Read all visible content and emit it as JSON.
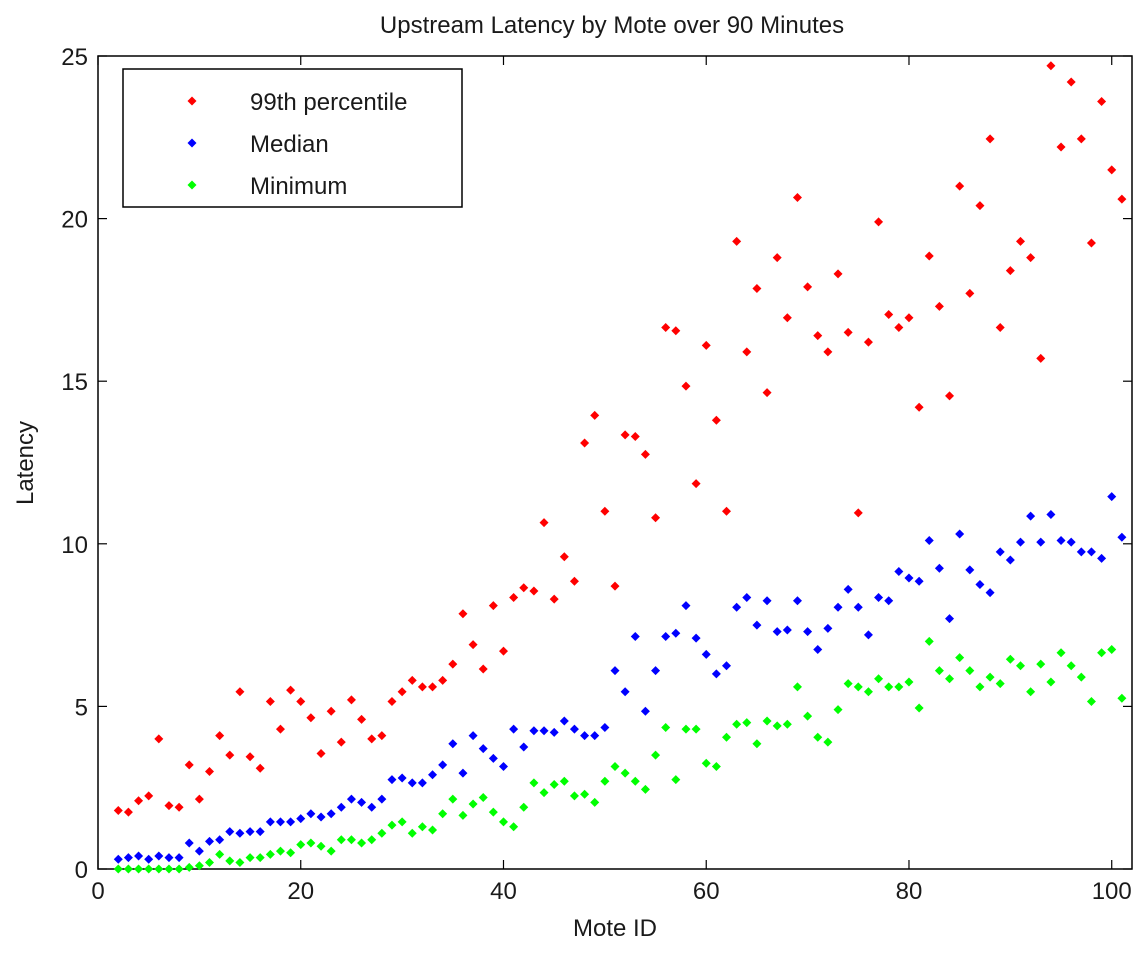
{
  "chart_data": {
    "type": "scatter",
    "title": "Upstream Latency by Mote over 90 Minutes",
    "xlabel": "Mote ID",
    "ylabel": "Latency",
    "xlim": [
      0,
      102
    ],
    "ylim": [
      0,
      25
    ],
    "x_ticks": [
      0,
      20,
      40,
      60,
      80,
      100
    ],
    "y_ticks": [
      0,
      5,
      10,
      15,
      20,
      25
    ],
    "grid": false,
    "legend_position": "top-left",
    "series": [
      {
        "name": "99th percentile",
        "color": "#ff0000",
        "x": [
          2,
          3,
          4,
          5,
          6,
          7,
          8,
          9,
          10,
          11,
          12,
          13,
          14,
          15,
          16,
          17,
          18,
          19,
          20,
          21,
          22,
          23,
          24,
          25,
          26,
          27,
          28,
          29,
          30,
          31,
          32,
          33,
          34,
          35,
          36,
          37,
          38,
          39,
          40,
          41,
          42,
          43,
          44,
          45,
          46,
          47,
          48,
          49,
          50,
          51,
          52,
          53,
          54,
          55,
          56,
          57,
          58,
          59,
          60,
          61,
          62,
          63,
          64,
          65,
          66,
          67,
          68,
          69,
          70,
          71,
          72,
          73,
          74,
          75,
          76,
          77,
          78,
          79,
          80,
          81,
          82,
          83,
          84,
          85,
          86,
          87,
          88,
          89,
          90,
          91,
          92,
          93,
          94,
          95,
          96,
          97,
          98,
          99,
          100,
          101
        ],
        "y": [
          1.8,
          1.75,
          2.1,
          2.25,
          4.0,
          1.95,
          1.9,
          3.2,
          2.15,
          3.0,
          4.1,
          3.5,
          5.45,
          3.45,
          3.1,
          5.15,
          4.3,
          5.5,
          5.15,
          4.65,
          3.55,
          4.85,
          3.9,
          5.2,
          4.6,
          4.0,
          4.1,
          5.15,
          5.45,
          5.8,
          5.6,
          5.6,
          5.8,
          6.3,
          7.85,
          6.9,
          6.15,
          8.1,
          6.7,
          8.35,
          8.65,
          8.55,
          10.65,
          8.3,
          9.6,
          8.85,
          13.1,
          13.95,
          11.0,
          8.7,
          13.35,
          13.3,
          12.75,
          10.8,
          16.65,
          16.55,
          14.85,
          11.85,
          16.1,
          13.8,
          11.0,
          19.3,
          15.9,
          17.85,
          14.65,
          18.8,
          16.95,
          20.65,
          17.9,
          16.4,
          15.9,
          18.3,
          16.5,
          10.95,
          16.2,
          19.9,
          17.05,
          16.65,
          16.95,
          14.2,
          18.85,
          17.3,
          14.55,
          21.0,
          17.7,
          20.4,
          22.45,
          16.65,
          18.4,
          19.3,
          18.8,
          15.7,
          24.7,
          22.2,
          24.2,
          22.45,
          19.25,
          23.6,
          21.5,
          20.6
        ]
      },
      {
        "name": "Median",
        "color": "#0000ff",
        "x": [
          2,
          3,
          4,
          5,
          6,
          7,
          8,
          9,
          10,
          11,
          12,
          13,
          14,
          15,
          16,
          17,
          18,
          19,
          20,
          21,
          22,
          23,
          24,
          25,
          26,
          27,
          28,
          29,
          30,
          31,
          32,
          33,
          34,
          35,
          36,
          37,
          38,
          39,
          40,
          41,
          42,
          43,
          44,
          45,
          46,
          47,
          48,
          49,
          50,
          51,
          52,
          53,
          54,
          55,
          56,
          57,
          58,
          59,
          60,
          61,
          62,
          63,
          64,
          65,
          66,
          67,
          68,
          69,
          70,
          71,
          72,
          73,
          74,
          75,
          76,
          77,
          78,
          79,
          80,
          81,
          82,
          83,
          84,
          85,
          86,
          87,
          88,
          89,
          90,
          91,
          92,
          93,
          94,
          95,
          96,
          97,
          98,
          99,
          100,
          101
        ],
        "y": [
          0.3,
          0.35,
          0.4,
          0.3,
          0.4,
          0.35,
          0.35,
          0.8,
          0.55,
          0.85,
          0.9,
          1.15,
          1.1,
          1.15,
          1.15,
          1.45,
          1.45,
          1.45,
          1.55,
          1.7,
          1.6,
          1.7,
          1.9,
          2.15,
          2.05,
          1.9,
          2.15,
          2.75,
          2.8,
          2.65,
          2.65,
          2.9,
          3.2,
          3.85,
          2.95,
          4.1,
          3.7,
          3.4,
          3.15,
          4.3,
          3.75,
          4.25,
          4.25,
          4.2,
          4.55,
          4.3,
          4.1,
          4.1,
          4.35,
          6.1,
          5.45,
          7.15,
          4.85,
          6.1,
          7.15,
          7.25,
          8.1,
          7.1,
          6.6,
          6.0,
          6.25,
          8.05,
          8.35,
          7.5,
          8.25,
          7.3,
          7.35,
          8.25,
          7.3,
          6.75,
          7.4,
          8.05,
          8.6,
          8.05,
          7.2,
          8.35,
          8.25,
          9.15,
          8.95,
          8.85,
          10.1,
          9.25,
          7.7,
          10.3,
          9.2,
          8.75,
          8.5,
          9.75,
          9.5,
          10.05,
          10.85,
          10.05,
          10.9,
          10.1,
          10.05,
          9.75,
          9.75,
          9.55,
          11.45,
          10.2
        ]
      },
      {
        "name": "Minimum",
        "color": "#00ff00",
        "x": [
          2,
          3,
          4,
          5,
          6,
          7,
          8,
          9,
          10,
          11,
          12,
          13,
          14,
          15,
          16,
          17,
          18,
          19,
          20,
          21,
          22,
          23,
          24,
          25,
          26,
          27,
          28,
          29,
          30,
          31,
          32,
          33,
          34,
          35,
          36,
          37,
          38,
          39,
          40,
          41,
          42,
          43,
          44,
          45,
          46,
          47,
          48,
          49,
          50,
          51,
          52,
          53,
          54,
          55,
          56,
          57,
          58,
          59,
          60,
          61,
          62,
          63,
          64,
          65,
          66,
          67,
          68,
          69,
          70,
          71,
          72,
          73,
          74,
          75,
          76,
          77,
          78,
          79,
          80,
          81,
          82,
          83,
          84,
          85,
          86,
          87,
          88,
          89,
          90,
          91,
          92,
          93,
          94,
          95,
          96,
          97,
          98,
          99,
          100,
          101
        ],
        "y": [
          0.0,
          0.0,
          0.0,
          0.0,
          0.0,
          0.0,
          0.0,
          0.05,
          0.1,
          0.2,
          0.45,
          0.25,
          0.2,
          0.35,
          0.35,
          0.45,
          0.55,
          0.5,
          0.75,
          0.8,
          0.7,
          0.55,
          0.9,
          0.9,
          0.8,
          0.9,
          1.1,
          1.35,
          1.45,
          1.1,
          1.3,
          1.2,
          1.7,
          2.15,
          1.65,
          2.0,
          2.2,
          1.75,
          1.45,
          1.3,
          1.9,
          2.65,
          2.35,
          2.6,
          2.7,
          2.25,
          2.3,
          2.05,
          2.7,
          3.15,
          2.95,
          2.7,
          2.45,
          3.5,
          4.35,
          2.75,
          4.3,
          4.3,
          3.25,
          3.15,
          4.05,
          4.45,
          4.5,
          3.85,
          4.55,
          4.4,
          4.45,
          5.6,
          4.7,
          4.05,
          3.9,
          4.9,
          5.7,
          5.6,
          5.45,
          5.85,
          5.6,
          5.6,
          5.75,
          4.95,
          7.0,
          6.1,
          5.85,
          6.5,
          6.1,
          5.6,
          5.9,
          5.7,
          6.45,
          6.25,
          5.45,
          6.3,
          5.75,
          6.65,
          6.25,
          5.9,
          5.15,
          6.65,
          6.75,
          5.25
        ]
      }
    ]
  }
}
